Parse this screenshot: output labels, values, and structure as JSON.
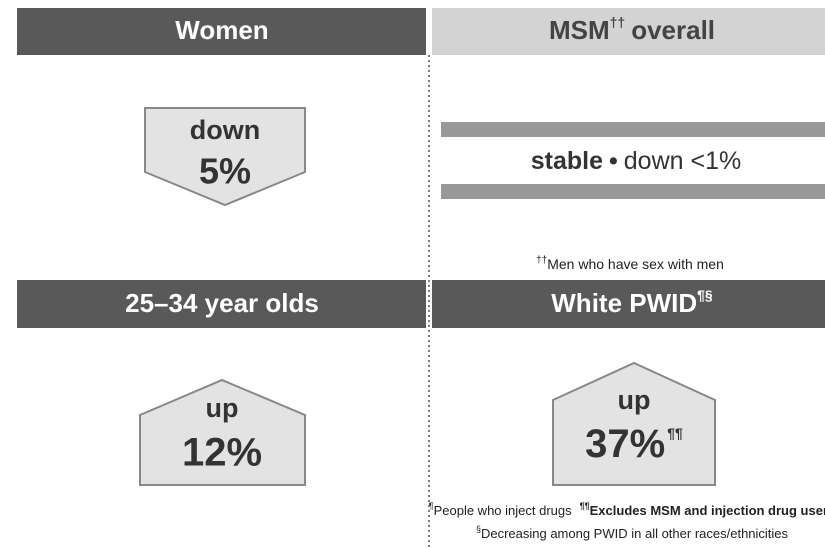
{
  "panels": [
    {
      "title": "Women",
      "direction": "down",
      "change": "5%"
    },
    {
      "title": "MSM",
      "title_mark": "††",
      "title_rest": "overall",
      "status": "stable",
      "separator": "•",
      "change": "down <1%",
      "footnote_mark": "††",
      "footnote": "Men who have sex with men"
    },
    {
      "title": "25–34 year olds",
      "direction": "up",
      "change": "12%"
    },
    {
      "title": "White PWID",
      "title_mark": "¶§",
      "direction": "up",
      "change": "37%",
      "change_mark": "¶¶"
    }
  ],
  "footnotes": [
    {
      "mark": "¶",
      "text": "People who inject drugs"
    },
    {
      "mark": "¶¶",
      "text": "Excludes MSM and injection drug users"
    },
    {
      "mark": "§",
      "text": "Decreasing among PWID in all other races/ethnicities"
    }
  ]
}
